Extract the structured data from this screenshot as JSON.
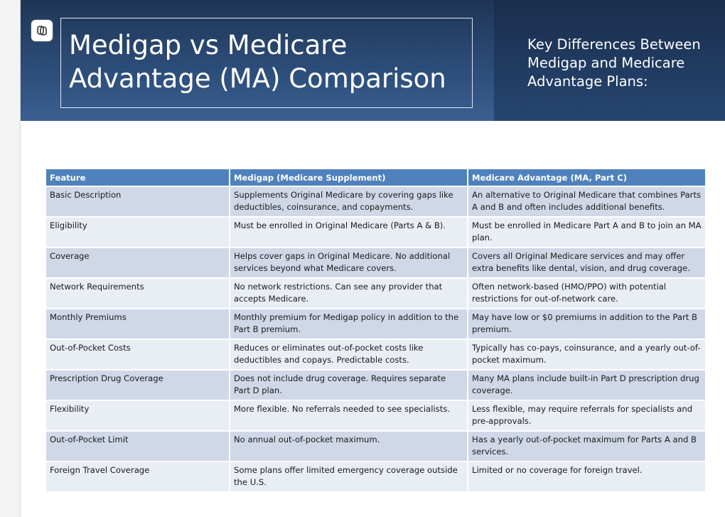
{
  "header": {
    "title": "Medigap vs Medicare Advantage (MA) Comparison",
    "subtitle": "Key Differences Between Medigap and Medicare Advantage Plans:"
  },
  "table": {
    "columns": [
      "Feature",
      "Medigap (Medicare Supplement)",
      "Medicare Advantage (MA, Part C)"
    ],
    "rows": [
      [
        "Basic Description",
        "Supplements Original Medicare by covering gaps like deductibles, coinsurance, and copayments.",
        "An alternative to Original Medicare that combines Parts A and B and often includes additional benefits."
      ],
      [
        "Eligibility",
        "Must be enrolled in Original Medicare (Parts A & B).",
        "Must be enrolled in Medicare Part A and B to join an MA plan."
      ],
      [
        "Coverage",
        "Helps cover gaps in Original Medicare. No additional services beyond what Medicare covers.",
        "Covers all Original Medicare services and may offer extra benefits like dental, vision, and drug coverage."
      ],
      [
        "Network Requirements",
        "No network restrictions. Can see any provider that accepts Medicare.",
        "Often network-based (HMO/PPO) with potential restrictions for out-of-network care."
      ],
      [
        "Monthly Premiums",
        "Monthly premium for Medigap policy in addition to the Part B premium.",
        "May have low or $0 premiums in addition to the Part B premium."
      ],
      [
        "Out-of-Pocket Costs",
        "Reduces or eliminates out-of-pocket costs like deductibles and copays. Predictable costs.",
        "Typically has co-pays, coinsurance, and a yearly out-of-pocket maximum."
      ],
      [
        "Prescription Drug Coverage",
        "Does not include drug coverage. Requires separate Part D plan.",
        "Many MA plans include built-in Part D prescription drug coverage."
      ],
      [
        "Flexibility",
        "More flexible. No referrals needed to see specialists.",
        "Less flexible, may require referrals for specialists and pre-approvals."
      ],
      [
        "Out-of-Pocket Limit",
        "No annual out-of-pocket maximum.",
        "Has a yearly out-of-pocket maximum for Parts A and B services."
      ],
      [
        "Foreign Travel Coverage",
        "Some plans offer limited emergency coverage outside the U.S.",
        "Limited or no coverage for foreign travel."
      ]
    ]
  }
}
